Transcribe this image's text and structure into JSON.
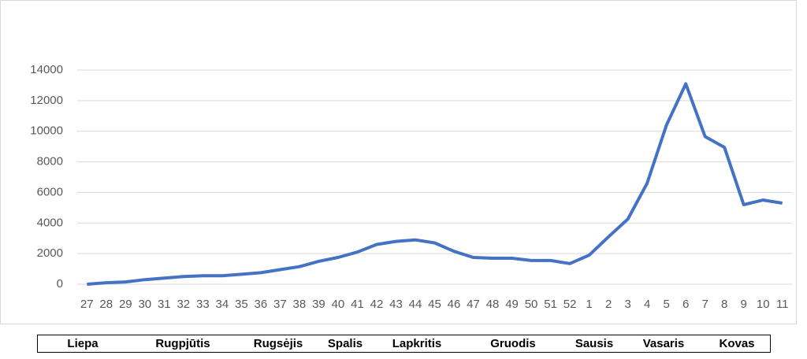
{
  "chart_data": {
    "type": "line",
    "categories": [
      "27",
      "28",
      "29",
      "30",
      "31",
      "32",
      "33",
      "34",
      "35",
      "36",
      "37",
      "38",
      "39",
      "40",
      "41",
      "42",
      "43",
      "44",
      "45",
      "46",
      "47",
      "48",
      "49",
      "50",
      "51",
      "52",
      "1",
      "2",
      "3",
      "4",
      "5",
      "6",
      "7",
      "8",
      "9",
      "10",
      "11"
    ],
    "series": [
      {
        "name": null,
        "color": "#4472c4",
        "values": [
          0,
          100,
          150,
          300,
          400,
          500,
          550,
          550,
          650,
          750,
          950,
          1150,
          1500,
          1750,
          2100,
          2600,
          2800,
          2900,
          2700,
          2150,
          1750,
          1700,
          1700,
          1550,
          1550,
          1350,
          1900,
          3100,
          4250,
          6600,
          10400,
          13100,
          9650,
          8950,
          5200,
          5500,
          5300
        ]
      }
    ],
    "ylim": [
      0,
      14000
    ],
    "yticks": [
      0,
      2000,
      4000,
      6000,
      8000,
      10000,
      12000,
      14000
    ],
    "grid": true,
    "month_labels": [
      "Liepa",
      "Rugpjūtis",
      "Rugsėjis",
      "Spalis",
      "Lapkritis",
      "Gruodis",
      "Sausis",
      "Vasaris",
      "Kovas"
    ]
  }
}
